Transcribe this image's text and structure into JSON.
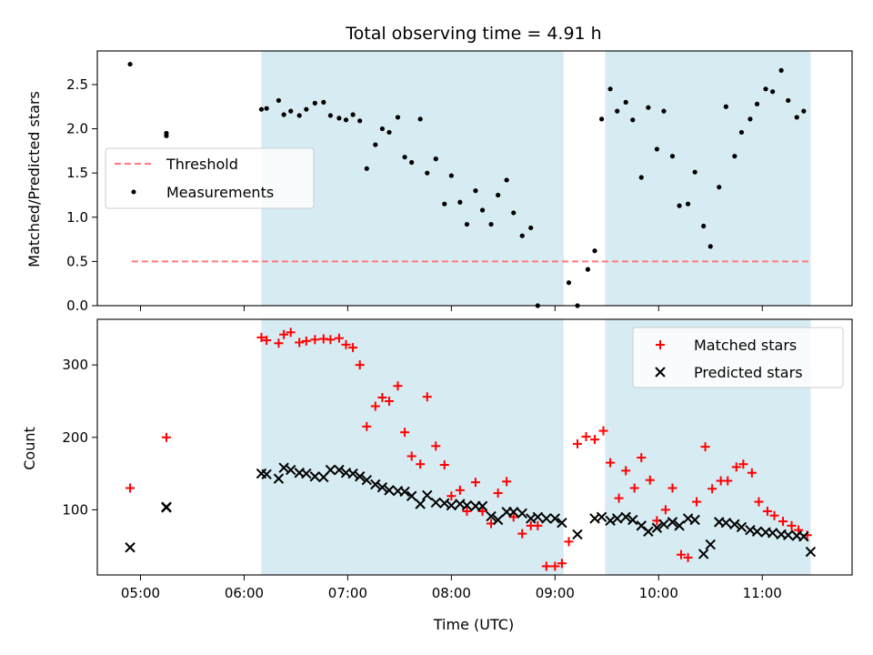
{
  "chart_data": [
    {
      "type": "scatter",
      "title": "Total observing time = 4.91 h",
      "ylabel": "Matched/Predicted stars",
      "xlabel": "",
      "xlim": [
        "04:35",
        "11:52"
      ],
      "ylim": [
        0,
        2.88
      ],
      "yticks": [
        0.0,
        0.5,
        1.0,
        1.5,
        2.0,
        2.5
      ],
      "ytick_labels": [
        "0.0",
        "0.5",
        "1.0",
        "1.5",
        "2.0",
        "2.5"
      ],
      "grid": false,
      "legend_position": "center-left",
      "shaded_intervals": [
        {
          "start": "06:10",
          "end": "09:05",
          "color": "#add8e6"
        },
        {
          "start": "09:29",
          "end": "11:28",
          "color": "#add8e6"
        }
      ],
      "threshold": {
        "name": "Threshold",
        "value": 0.5,
        "x_start": "04:55",
        "x_end": "11:28",
        "color": "#ff7a7a",
        "style": "dashed"
      },
      "series": [
        {
          "name": "Measurements",
          "color": "#000000",
          "marker": "dot",
          "x": [
            "04:54",
            "05:15",
            "05:15",
            "06:10",
            "06:13",
            "06:20",
            "06:23",
            "06:27",
            "06:32",
            "06:36",
            "06:41",
            "06:46",
            "06:50",
            "06:55",
            "06:59",
            "07:03",
            "07:07",
            "07:11",
            "07:16",
            "07:20",
            "07:24",
            "07:29",
            "07:33",
            "07:37",
            "07:42",
            "07:46",
            "07:51",
            "07:56",
            "08:00",
            "08:05",
            "08:09",
            "08:14",
            "08:18",
            "08:23",
            "08:27",
            "08:32",
            "08:36",
            "08:41",
            "08:46",
            "08:50",
            "09:08",
            "09:13",
            "09:19",
            "09:23",
            "09:27",
            "09:32",
            "09:36",
            "09:41",
            "09:45",
            "09:50",
            "09:54",
            "09:59",
            "10:03",
            "10:08",
            "10:12",
            "10:17",
            "10:21",
            "10:26",
            "10:30",
            "10:35",
            "10:39",
            "10:44",
            "10:48",
            "10:53",
            "10:57",
            "11:02",
            "11:06",
            "11:11",
            "11:15",
            "11:20",
            "11:24"
          ],
          "y": [
            2.73,
            1.95,
            1.92,
            2.22,
            2.23,
            2.32,
            2.16,
            2.2,
            2.15,
            2.22,
            2.29,
            2.3,
            2.15,
            2.12,
            2.1,
            2.16,
            2.09,
            1.55,
            1.82,
            2.0,
            1.96,
            2.13,
            1.68,
            1.62,
            2.11,
            1.5,
            1.66,
            1.15,
            1.47,
            1.17,
            0.92,
            1.3,
            1.08,
            0.92,
            1.25,
            1.42,
            1.05,
            0.79,
            0.88,
            0.0,
            0.26,
            0.0,
            0.41,
            0.62,
            2.11,
            2.45,
            2.2,
            2.3,
            2.1,
            1.45,
            2.24,
            1.77,
            2.2,
            1.69,
            1.13,
            1.15,
            1.51,
            0.9,
            0.67,
            1.34,
            2.25,
            1.69,
            1.96,
            2.11,
            2.28,
            2.45,
            2.42,
            2.66,
            2.32,
            2.13,
            2.2
          ]
        }
      ]
    },
    {
      "type": "scatter",
      "title": "",
      "ylabel": "Count",
      "xlabel": "Time (UTC)",
      "xlim": [
        "04:35",
        "11:52"
      ],
      "ylim": [
        10,
        363
      ],
      "yticks": [
        100,
        200,
        300
      ],
      "ytick_labels": [
        "100",
        "200",
        "300"
      ],
      "xticks": [
        "05:00",
        "06:00",
        "07:00",
        "08:00",
        "09:00",
        "10:00",
        "11:00"
      ],
      "xtick_labels": [
        "05:00",
        "06:00",
        "07:00",
        "08:00",
        "09:00",
        "10:00",
        "11:00"
      ],
      "grid": false,
      "legend_position": "top-right",
      "shaded_intervals": [
        {
          "start": "06:10",
          "end": "09:05",
          "color": "#add8e6"
        },
        {
          "start": "09:29",
          "end": "11:28",
          "color": "#add8e6"
        }
      ],
      "series": [
        {
          "name": "Matched stars",
          "color": "#ff0000",
          "marker": "plus",
          "x": [
            "04:54",
            "05:15",
            "06:10",
            "06:13",
            "06:20",
            "06:23",
            "06:27",
            "06:32",
            "06:36",
            "06:41",
            "06:46",
            "06:50",
            "06:55",
            "06:59",
            "07:03",
            "07:07",
            "07:11",
            "07:16",
            "07:20",
            "07:24",
            "07:29",
            "07:33",
            "07:37",
            "07:42",
            "07:46",
            "07:51",
            "07:56",
            "08:00",
            "08:05",
            "08:09",
            "08:14",
            "08:18",
            "08:23",
            "08:27",
            "08:32",
            "08:36",
            "08:41",
            "08:46",
            "08:50",
            "08:55",
            "09:00",
            "09:04",
            "09:08",
            "09:13",
            "09:18",
            "09:23",
            "09:28",
            "09:32",
            "09:37",
            "09:41",
            "09:46",
            "09:50",
            "09:55",
            "09:59",
            "10:04",
            "10:08",
            "10:13",
            "10:17",
            "10:22",
            "10:27",
            "10:31",
            "10:36",
            "10:40",
            "10:45",
            "10:49",
            "10:54",
            "10:58",
            "11:03",
            "11:07",
            "11:12",
            "11:17",
            "11:21",
            "11:26"
          ],
          "y": [
            130,
            200,
            338,
            334,
            330,
            342,
            345,
            331,
            333,
            335,
            336,
            335,
            337,
            328,
            324,
            300,
            215,
            243,
            255,
            250,
            271,
            207,
            174,
            163,
            256,
            188,
            162,
            119,
            127,
            98,
            138,
            98,
            81,
            123,
            139,
            90,
            67,
            78,
            78,
            22,
            22,
            26,
            56,
            191,
            201,
            197,
            209,
            165,
            116,
            154,
            130,
            172,
            141,
            85,
            100,
            130,
            38,
            34,
            111,
            187,
            129,
            140,
            140,
            159,
            163,
            151,
            111,
            98,
            92,
            84,
            78,
            72,
            65
          ]
        },
        {
          "name": "Predicted stars",
          "color": "#000000",
          "marker": "x",
          "x": [
            "04:54",
            "05:15",
            "05:15",
            "06:10",
            "06:13",
            "06:20",
            "06:23",
            "06:27",
            "06:32",
            "06:36",
            "06:41",
            "06:46",
            "06:50",
            "06:55",
            "06:59",
            "07:03",
            "07:07",
            "07:11",
            "07:16",
            "07:20",
            "07:24",
            "07:29",
            "07:33",
            "07:37",
            "07:42",
            "07:46",
            "07:51",
            "07:56",
            "08:00",
            "08:05",
            "08:09",
            "08:14",
            "08:18",
            "08:23",
            "08:27",
            "08:32",
            "08:36",
            "08:41",
            "08:46",
            "08:50",
            "08:55",
            "09:00",
            "09:04",
            "09:13",
            "09:23",
            "09:27",
            "09:32",
            "09:36",
            "09:41",
            "09:45",
            "09:50",
            "09:54",
            "09:59",
            "10:03",
            "10:08",
            "10:12",
            "10:17",
            "10:21",
            "10:26",
            "10:30",
            "10:35",
            "10:39",
            "10:44",
            "10:48",
            "10:53",
            "10:57",
            "11:02",
            "11:06",
            "11:11",
            "11:15",
            "11:20",
            "11:24",
            "11:28"
          ],
          "y": [
            48,
            103,
            104,
            150,
            149,
            143,
            158,
            155,
            151,
            150,
            146,
            145,
            155,
            155,
            151,
            150,
            146,
            141,
            135,
            131,
            127,
            126,
            125,
            119,
            108,
            120,
            110,
            109,
            106,
            108,
            106,
            105,
            105,
            91,
            86,
            97,
            97,
            95,
            88,
            90,
            88,
            88,
            82,
            66,
            88,
            90,
            85,
            88,
            90,
            86,
            78,
            70,
            75,
            80,
            83,
            78,
            88,
            86,
            39,
            52,
            83,
            82,
            80,
            76,
            72,
            70,
            69,
            68,
            66,
            65,
            64,
            63,
            42
          ]
        }
      ]
    }
  ]
}
